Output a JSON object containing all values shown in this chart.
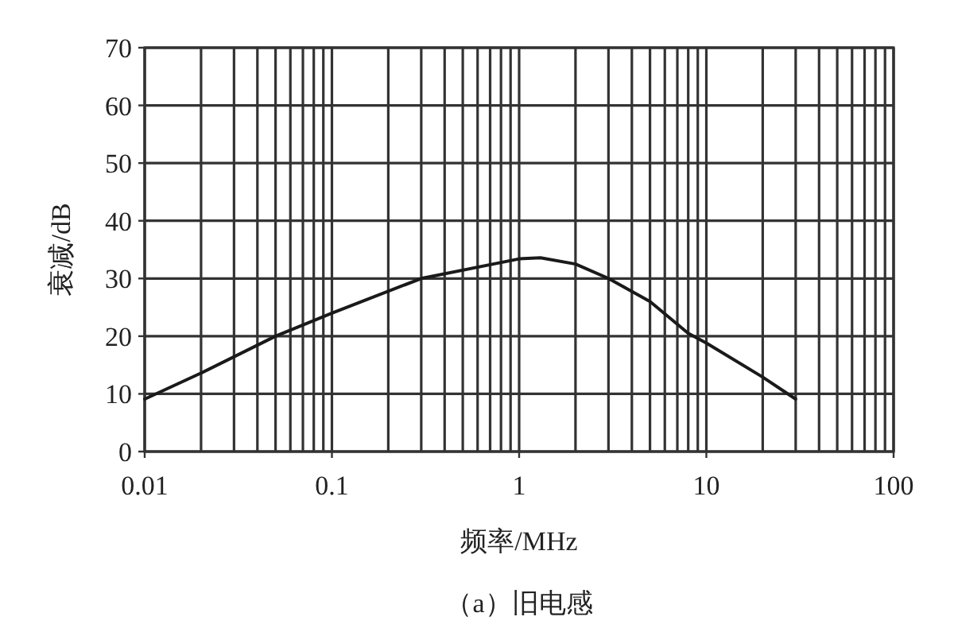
{
  "chart_data": {
    "type": "line",
    "title": "（a）旧电感",
    "xlabel": "频率/MHz",
    "ylabel": "衰减/dB",
    "log": "x",
    "grid": true,
    "color": "#1a1a1a",
    "xlim": [
      0.01,
      100
    ],
    "xticks": [
      0.01,
      0.1,
      1,
      10,
      100
    ],
    "ylim": [
      0,
      70
    ],
    "yticks": [
      0,
      10,
      20,
      30,
      40,
      50,
      60,
      70
    ],
    "x": [
      0.01,
      0.02,
      0.05,
      0.1,
      0.3,
      1,
      1.3,
      2,
      3,
      5,
      8,
      10,
      20,
      30
    ],
    "values": [
      9.1,
      13.6,
      20,
      24,
      30,
      33.4,
      33.6,
      32.5,
      30,
      26,
      20.5,
      18.8,
      12.9,
      9.1
    ]
  }
}
